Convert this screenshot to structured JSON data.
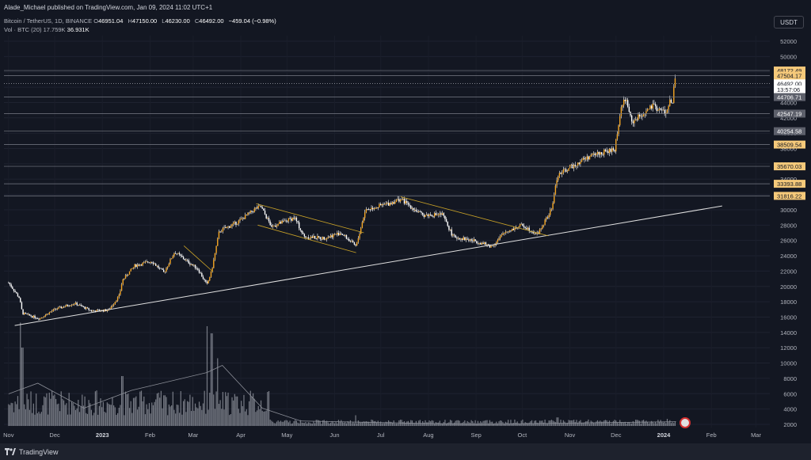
{
  "header": {
    "publisher": "Alade_Michael published on TradingView.com, Jan 09, 2024 11:02 UTC+1"
  },
  "ohlc": {
    "symbol": "Bitcoin / TetherUS, 1D, BINANCE",
    "open_label": "O",
    "open": "46951.04",
    "high_label": "H",
    "high": "47150.00",
    "low_label": "L",
    "low": "46230.00",
    "close_label": "C",
    "close": "46492.00",
    "change": "−459.04 (−0.98%)"
  },
  "volume": {
    "label": "Vol · BTC (20)",
    "value1": "17.759K",
    "value2": "36.931K"
  },
  "currency": "USDT",
  "footer": {
    "brand": "TradingView"
  },
  "colors": {
    "background": "#131722",
    "candle": "#f5a623",
    "candle_wick": "#ffffff",
    "volume_bar": "#8a8d96",
    "trendline": "#e0e0e0",
    "channel": "#c9a227",
    "level": "#787b86",
    "badge_orange": "#f5c97a",
    "badge_gray": "#5d606b",
    "price_badge": "#ffffff"
  },
  "chart_data": {
    "type": "candlestick",
    "title": "Bitcoin / TetherUS, 1D, BINANCE",
    "x_labels": [
      "Nov",
      "Dec",
      "2023",
      "Feb",
      "Mar",
      "Apr",
      "May",
      "Jun",
      "Jul",
      "Aug",
      "Sep",
      "Oct",
      "Nov",
      "Dec",
      "2024",
      "Feb",
      "Mar"
    ],
    "y_ticks": [
      52000,
      50000,
      48000,
      46000,
      44000,
      42000,
      40000,
      38000,
      36000,
      34000,
      32000,
      30000,
      28000,
      26000,
      24000,
      22000,
      20000,
      18000,
      16000,
      14000,
      12000,
      10000,
      8000,
      6000,
      4000,
      2000
    ],
    "ylim": [
      1600,
      53400
    ],
    "price_path": [
      [
        "2022-11-01",
        20500
      ],
      [
        "2022-11-08",
        18500
      ],
      [
        "2022-11-10",
        16500
      ],
      [
        "2022-11-21",
        15800
      ],
      [
        "2022-12-01",
        17000
      ],
      [
        "2022-12-14",
        17800
      ],
      [
        "2022-12-25",
        16800
      ],
      [
        "2023-01-05",
        16900
      ],
      [
        "2023-01-12",
        18800
      ],
      [
        "2023-01-14",
        20800
      ],
      [
        "2023-01-22",
        22700
      ],
      [
        "2023-02-02",
        23300
      ],
      [
        "2023-02-10",
        21800
      ],
      [
        "2023-02-17",
        24500
      ],
      [
        "2023-02-25",
        23300
      ],
      [
        "2023-03-04",
        22300
      ],
      [
        "2023-03-10",
        20200
      ],
      [
        "2023-03-13",
        22000
      ],
      [
        "2023-03-18",
        27200
      ],
      [
        "2023-03-30",
        28400
      ],
      [
        "2023-04-11",
        30200
      ],
      [
        "2023-04-14",
        30400
      ],
      [
        "2023-04-21",
        27800
      ],
      [
        "2023-05-06",
        29000
      ],
      [
        "2023-05-12",
        26500
      ],
      [
        "2023-05-25",
        26300
      ],
      [
        "2023-06-05",
        27000
      ],
      [
        "2023-06-15",
        25200
      ],
      [
        "2023-06-21",
        30000
      ],
      [
        "2023-07-06",
        30800
      ],
      [
        "2023-07-14",
        31400
      ],
      [
        "2023-07-28",
        29300
      ],
      [
        "2023-08-10",
        29400
      ],
      [
        "2023-08-17",
        26500
      ],
      [
        "2023-09-01",
        25900
      ],
      [
        "2023-09-11",
        25200
      ],
      [
        "2023-09-20",
        27100
      ],
      [
        "2023-10-01",
        28000
      ],
      [
        "2023-10-11",
        26800
      ],
      [
        "2023-10-20",
        30000
      ],
      [
        "2023-10-24",
        34500
      ],
      [
        "2023-11-09",
        36500
      ],
      [
        "2023-11-18",
        37300
      ],
      [
        "2023-11-30",
        37800
      ],
      [
        "2023-12-05",
        44000
      ],
      [
        "2023-12-08",
        44200
      ],
      [
        "2023-12-11",
        41400
      ],
      [
        "2023-12-25",
        43500
      ],
      [
        "2024-01-03",
        42600
      ],
      [
        "2024-01-05",
        44200
      ],
      [
        "2024-01-07",
        44100
      ],
      [
        "2024-01-08",
        46951
      ],
      [
        "2024-01-09",
        46492
      ]
    ],
    "volume_peaks_k": [
      [
        "2022-11-09",
        145
      ],
      [
        "2022-11-10",
        110
      ],
      [
        "2023-01-14",
        70
      ],
      [
        "2023-03-10",
        140
      ],
      [
        "2023-03-13",
        130
      ],
      [
        "2023-03-17",
        95
      ],
      [
        "2023-06-15",
        15
      ],
      [
        "2023-10-24",
        12
      ],
      [
        "2024-01-03",
        10
      ]
    ],
    "volume_ma_k": [
      [
        "2022-11-01",
        45
      ],
      [
        "2022-11-20",
        60
      ],
      [
        "2022-12-20",
        25
      ],
      [
        "2023-01-20",
        50
      ],
      [
        "2023-03-10",
        75
      ],
      [
        "2023-03-20",
        85
      ],
      [
        "2023-04-15",
        25
      ],
      [
        "2023-05-10",
        7
      ],
      [
        "2023-09-01",
        2
      ],
      [
        "2023-11-01",
        4
      ],
      [
        "2024-01-09",
        6
      ]
    ],
    "horizontal_levels": [
      {
        "label": "48172.49",
        "value": 48172.49,
        "style": "orange"
      },
      {
        "label": "47504.17",
        "value": 47504.17,
        "style": "orange"
      },
      {
        "label": "46492.00",
        "value": 46492.0,
        "style": "last"
      },
      {
        "label": "13:57:06",
        "value": 45700,
        "style": "countdown"
      },
      {
        "label": "44706.71",
        "value": 44706.71,
        "style": "gray"
      },
      {
        "label": "42547.19",
        "value": 42547.19,
        "style": "gray"
      },
      {
        "label": "40254.58",
        "value": 40254.58,
        "style": "gray"
      },
      {
        "label": "38509.54",
        "value": 38509.54,
        "style": "orange"
      },
      {
        "label": "35670.03",
        "value": 35670.03,
        "style": "orange"
      },
      {
        "label": "33393.88",
        "value": 33393.88,
        "style": "orange"
      },
      {
        "label": "31816.22",
        "value": 31816.22,
        "style": "orange"
      }
    ],
    "trendline": [
      [
        "2022-11-05",
        14900
      ],
      [
        "2024-02-08",
        30500
      ]
    ],
    "channels": [
      {
        "upper": [
          [
            "2023-02-23",
            25300
          ],
          [
            "2023-03-14",
            21900
          ]
        ],
        "lower": []
      },
      {
        "upper": [
          [
            "2023-04-11",
            30800
          ],
          [
            "2023-06-20",
            27000
          ]
        ],
        "lower": [
          [
            "2023-04-12",
            28000
          ],
          [
            "2023-06-15",
            24400
          ]
        ]
      },
      {
        "upper": [
          [
            "2023-07-14",
            31700
          ],
          [
            "2023-10-18",
            26600
          ]
        ],
        "lower": []
      }
    ],
    "grid": true
  }
}
